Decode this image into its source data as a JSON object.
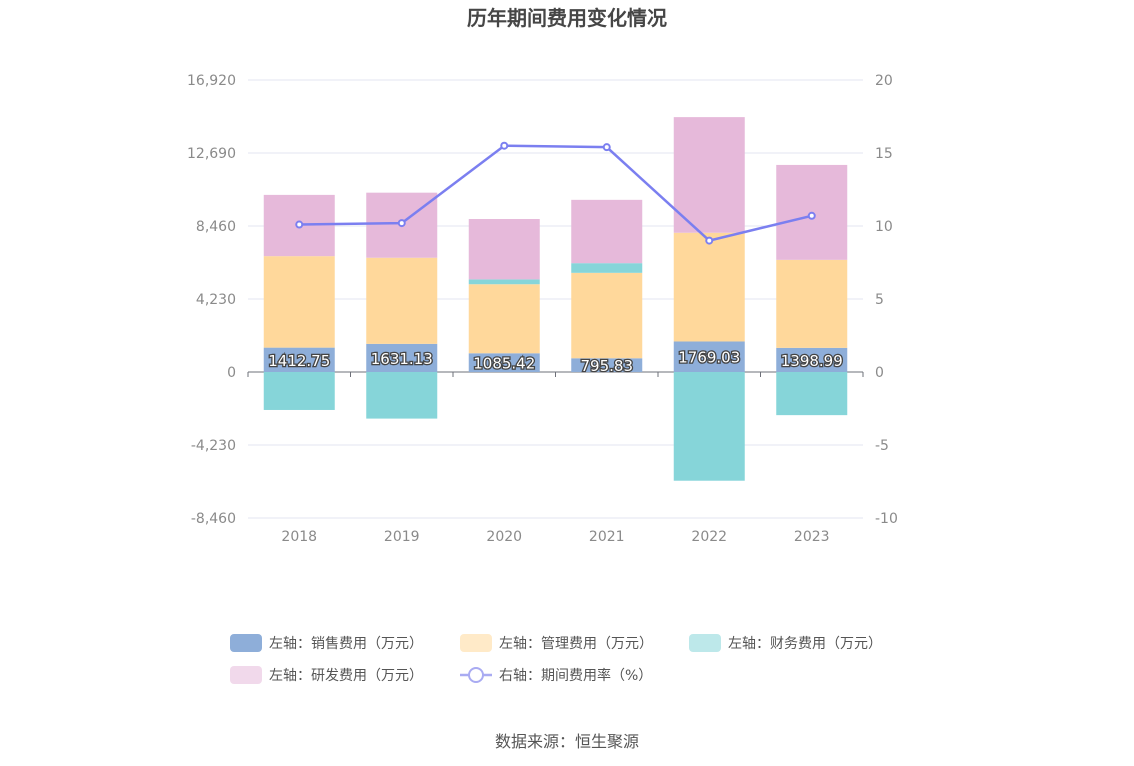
{
  "chart_data": {
    "type": "bar",
    "title": "历年期间费用变化情况",
    "categories": [
      "2018",
      "2019",
      "2020",
      "2021",
      "2022",
      "2023"
    ],
    "stacked": true,
    "left_axis": {
      "ylim": [
        -8460,
        16920
      ],
      "ticks": [
        16920,
        12690,
        8460,
        4230,
        0,
        -4230,
        -8460
      ],
      "tick_labels": [
        "16,920",
        "12,690",
        "8,460",
        "4,230",
        "0",
        "-4,230",
        "-8,460"
      ]
    },
    "right_axis": {
      "ylim": [
        -10,
        20
      ],
      "ticks": [
        20,
        15,
        10,
        5,
        0,
        -5,
        -10
      ],
      "tick_labels": [
        "20",
        "15",
        "10",
        "5",
        "0",
        "-5",
        "-10"
      ]
    },
    "series": [
      {
        "name": "左轴：销售费用（万元）",
        "type": "bar",
        "axis": "left",
        "color": "#8eaed9",
        "values": [
          1412.75,
          1631.13,
          1085.42,
          795.83,
          1769.03,
          1398.99
        ],
        "labels": [
          "1412.75",
          "1631.13",
          "1085.42",
          "795.83",
          "1769.03",
          "1398.99"
        ]
      },
      {
        "name": "左轴：管理费用（万元）",
        "type": "bar",
        "axis": "left",
        "color": "#ffd89b",
        "values": [
          5300,
          4990,
          4000,
          4950,
          6300,
          5100
        ]
      },
      {
        "name": "左轴：财务费用（万元）",
        "type": "bar",
        "axis": "left",
        "color": "#86d5d9",
        "values": [
          -2200,
          -2700,
          280,
          560,
          -6300,
          -2500
        ]
      },
      {
        "name": "左轴：研发费用（万元）",
        "type": "bar",
        "axis": "left",
        "color": "#e6b9da",
        "values": [
          3550,
          3770,
          3500,
          3670,
          6700,
          5500
        ]
      },
      {
        "name": "右轴：期间费用率（%）",
        "type": "line",
        "axis": "right",
        "color": "#7b7ff0",
        "values": [
          10.1,
          10.2,
          15.5,
          15.4,
          9.0,
          10.7
        ]
      }
    ],
    "legend_position": "bottom",
    "grid": true
  },
  "source_text": "数据来源：恒生聚源"
}
